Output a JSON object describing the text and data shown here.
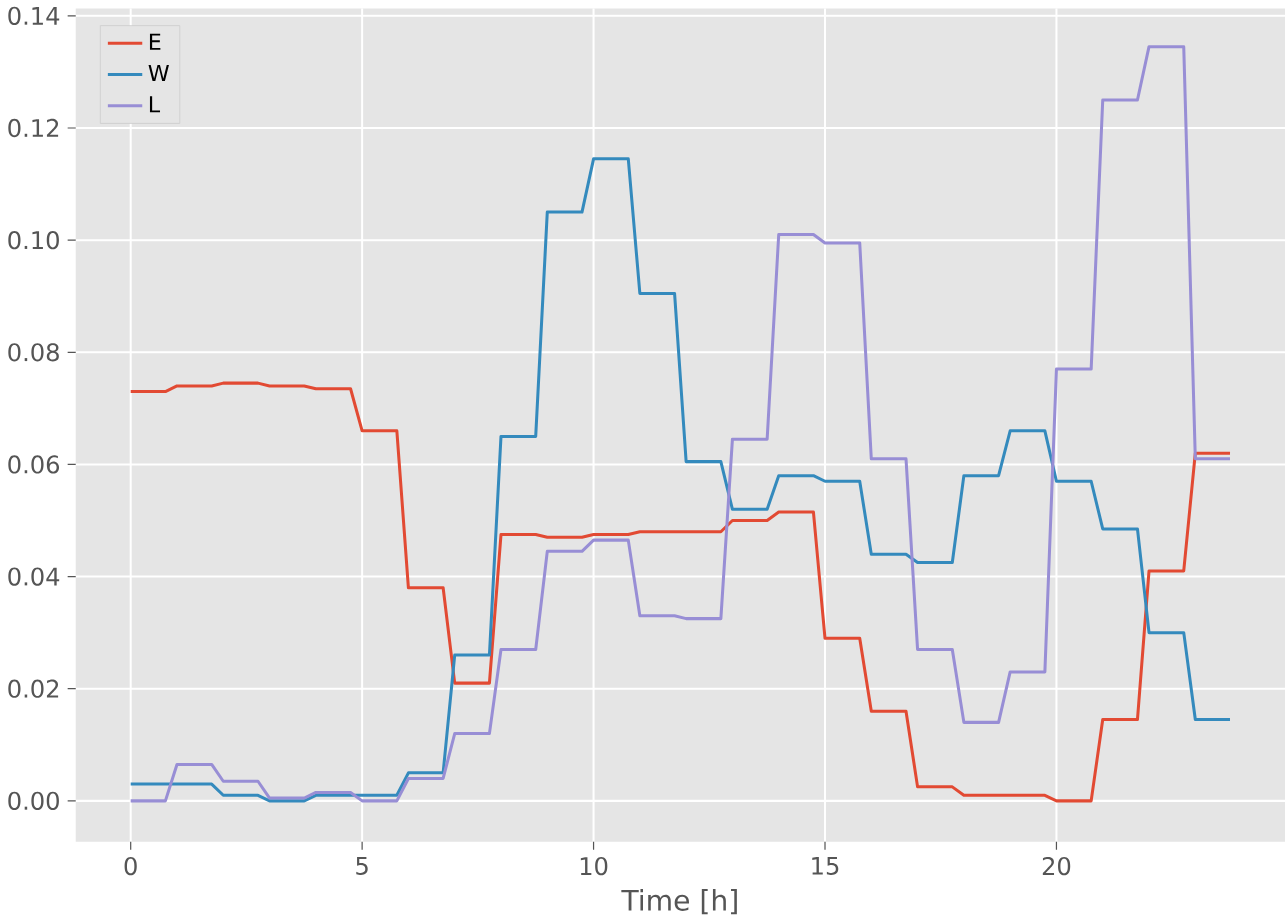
{
  "chart_data": {
    "type": "line",
    "xlabel": "Time [h]",
    "x": [
      0,
      0.75,
      1,
      1.75,
      2,
      2.75,
      3,
      3.75,
      4,
      4.75,
      5,
      5.75,
      6,
      6.75,
      7,
      7.75,
      8,
      8.75,
      9,
      9.75,
      10,
      10.75,
      11,
      11.75,
      12,
      12.75,
      13,
      13.75,
      14,
      14.75,
      15,
      15.75,
      16,
      16.75,
      17,
      17.75,
      18,
      18.75,
      19,
      19.75,
      20,
      20.75,
      21,
      21.75,
      22,
      22.75,
      23,
      23.75
    ],
    "series": [
      {
        "name": "E",
        "color": "#e24a33",
        "values": [
          0.073,
          0.073,
          0.074,
          0.074,
          0.0745,
          0.0745,
          0.074,
          0.074,
          0.0735,
          0.0735,
          0.066,
          0.066,
          0.038,
          0.038,
          0.021,
          0.021,
          0.0475,
          0.0475,
          0.047,
          0.047,
          0.0475,
          0.0475,
          0.048,
          0.048,
          0.048,
          0.048,
          0.05,
          0.05,
          0.0515,
          0.0515,
          0.029,
          0.029,
          0.016,
          0.016,
          0.0025,
          0.0025,
          0.001,
          0.001,
          0.001,
          0.001,
          0.0,
          0.0,
          0.0145,
          0.0145,
          0.041,
          0.041,
          0.062,
          0.062
        ]
      },
      {
        "name": "W",
        "color": "#348abd",
        "values": [
          0.003,
          0.003,
          0.003,
          0.003,
          0.001,
          0.001,
          0.0,
          0.0,
          0.001,
          0.001,
          0.001,
          0.001,
          0.005,
          0.005,
          0.026,
          0.026,
          0.065,
          0.065,
          0.105,
          0.105,
          0.1145,
          0.1145,
          0.0905,
          0.0905,
          0.0605,
          0.0605,
          0.052,
          0.052,
          0.058,
          0.058,
          0.057,
          0.057,
          0.044,
          0.044,
          0.0425,
          0.0425,
          0.058,
          0.058,
          0.066,
          0.066,
          0.057,
          0.057,
          0.0485,
          0.0485,
          0.03,
          0.03,
          0.0145,
          0.0145
        ]
      },
      {
        "name": "L",
        "color": "#988ed5",
        "values": [
          0.0,
          0.0,
          0.0065,
          0.0065,
          0.0035,
          0.0035,
          0.0005,
          0.0005,
          0.0015,
          0.0015,
          0.0,
          0.0,
          0.004,
          0.004,
          0.012,
          0.012,
          0.027,
          0.027,
          0.0445,
          0.0445,
          0.0465,
          0.0465,
          0.033,
          0.033,
          0.0325,
          0.0325,
          0.0645,
          0.0645,
          0.101,
          0.101,
          0.0995,
          0.0995,
          0.061,
          0.061,
          0.027,
          0.027,
          0.014,
          0.014,
          0.023,
          0.023,
          0.077,
          0.077,
          0.125,
          0.125,
          0.1345,
          0.1345,
          0.061,
          0.061
        ]
      }
    ],
    "xlim": [
      -1.1875,
      24.9375
    ],
    "xticks": [
      0,
      5,
      10,
      15,
      20
    ],
    "ylim": [
      -0.0073,
      0.1413
    ],
    "yticks": [
      {
        "value": 0,
        "label": "0.00"
      },
      {
        "value": 0.02,
        "label": "0.02"
      },
      {
        "value": 0.04,
        "label": "0.04"
      },
      {
        "value": 0.06,
        "label": "0.06"
      },
      {
        "value": 0.08,
        "label": "0.08"
      },
      {
        "value": 0.1,
        "label": "0.10"
      },
      {
        "value": 0.12,
        "label": "0.12"
      },
      {
        "value": 0.14,
        "label": "0.14"
      }
    ],
    "grid": true,
    "legend": "top left",
    "marker": "none",
    "line_style": "solid"
  }
}
